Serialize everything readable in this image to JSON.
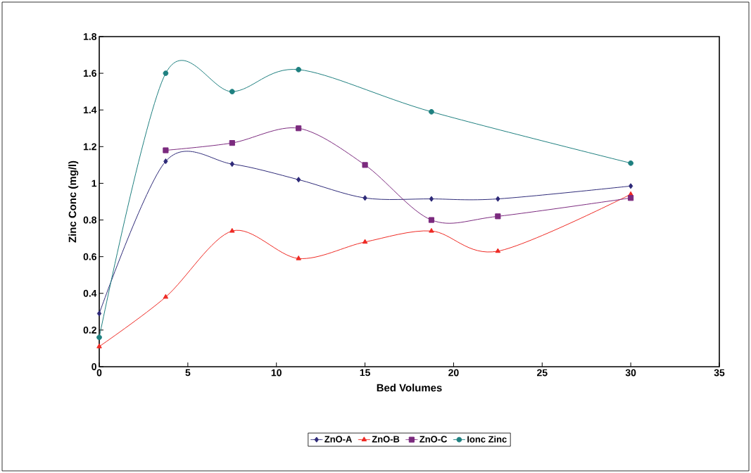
{
  "chart_data": {
    "type": "line",
    "xlabel": "Bed Volumes",
    "ylabel": "Zinc Conc (mg/l)",
    "xlim": [
      0,
      35
    ],
    "xticks": [
      0,
      5,
      10,
      15,
      20,
      25,
      30,
      35
    ],
    "ylim": [
      0,
      1.8
    ],
    "yticks": [
      0,
      0.2,
      0.4,
      0.6,
      0.8,
      1,
      1.2,
      1.4,
      1.6,
      1.8
    ],
    "grid": false,
    "legend": "bottom",
    "line_style": "solid",
    "series": [
      {
        "name": "ZnO-A",
        "color": "#2e2a78",
        "marker": "diamond",
        "x": [
          0,
          3.75,
          7.5,
          11.25,
          15,
          18.75,
          22.5,
          30
        ],
        "values": [
          0.29,
          1.12,
          1.105,
          1.02,
          0.92,
          0.915,
          0.915,
          0.985
        ]
      },
      {
        "name": "ZnO-B",
        "color": "#ee2a24",
        "marker": "triangle",
        "x": [
          0,
          3.75,
          7.5,
          11.25,
          15,
          18.75,
          22.5,
          30
        ],
        "values": [
          0.11,
          0.38,
          0.74,
          0.59,
          0.68,
          0.74,
          0.63,
          0.94
        ]
      },
      {
        "name": "ZnO-C",
        "color": "#7b2a7e",
        "marker": "square",
        "x": [
          3.75,
          7.5,
          11.25,
          15,
          18.75,
          22.5,
          30
        ],
        "values": [
          1.18,
          1.22,
          1.3,
          1.1,
          0.8,
          0.82,
          0.92
        ]
      },
      {
        "name": "Ionc Zinc",
        "color": "#1e8080",
        "marker": "circle",
        "x": [
          0,
          3.75,
          7.5,
          11.25,
          18.75,
          30
        ],
        "values": [
          0.16,
          1.6,
          1.5,
          1.62,
          1.39,
          1.11
        ]
      }
    ]
  }
}
